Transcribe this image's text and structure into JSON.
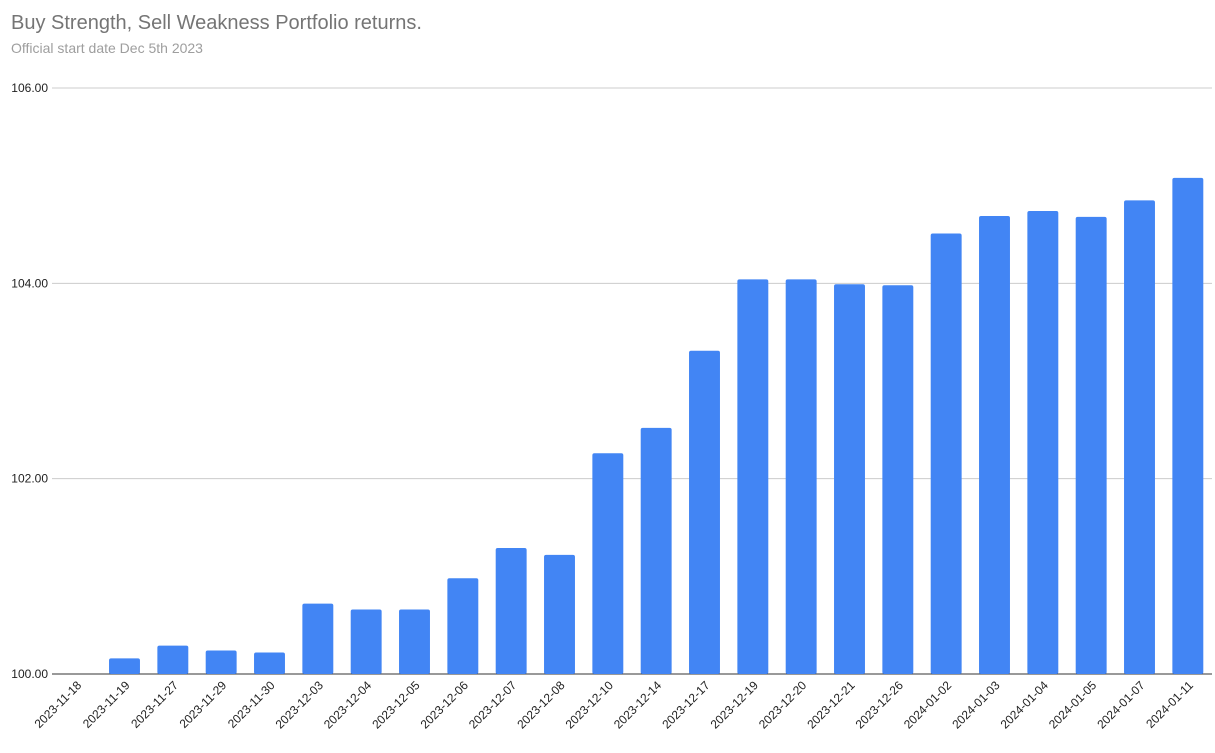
{
  "chart_data": {
    "type": "bar",
    "title": "Buy Strength, Sell Weakness Portfolio returns.",
    "subtitle": "Official start date Dec 5th 2023",
    "xlabel": "",
    "ylabel": "",
    "ylim": [
      100,
      106
    ],
    "yticks": [
      "100.00",
      "102.00",
      "104.00",
      "106.00"
    ],
    "grid": true,
    "bar_color": "#4285f4",
    "categories": [
      "2023-11-18",
      "2023-11-19",
      "2023-11-27",
      "2023-11-29",
      "2023-11-30",
      "2023-12-03",
      "2023-12-04",
      "2023-12-05",
      "2023-12-06",
      "2023-12-07",
      "2023-12-08",
      "2023-12-10",
      "2023-12-14",
      "2023-12-17",
      "2023-12-19",
      "2023-12-20",
      "2023-12-21",
      "2023-12-26",
      "2024-01-02",
      "2024-01-03",
      "2024-01-04",
      "2024-01-05",
      "2024-01-07",
      "2024-01-11"
    ],
    "values": [
      100.0,
      100.16,
      100.29,
      100.24,
      100.22,
      100.72,
      100.66,
      100.66,
      100.98,
      101.29,
      101.22,
      102.26,
      102.52,
      103.31,
      104.04,
      104.04,
      103.99,
      103.98,
      104.51,
      104.69,
      104.74,
      104.68,
      104.85,
      105.08
    ]
  }
}
